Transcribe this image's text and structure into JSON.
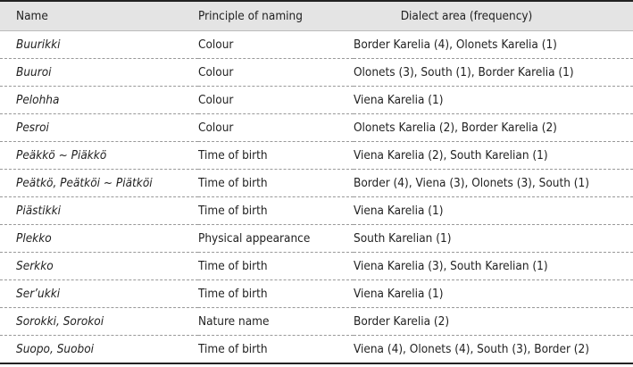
{
  "table": {
    "headers": [
      "Name",
      "Principle of naming",
      "Dialect area (frequency)"
    ],
    "rows": [
      [
        "Buurikki",
        "Colour",
        "Border Karelia (4), Olonets Karelia (1)"
      ],
      [
        "Buuroi",
        "Colour",
        "Olonets (3), South (1), Border Karelia (1)"
      ],
      [
        "Pelohha",
        "Colour",
        "Viena Karelia (1)"
      ],
      [
        "Pesroi",
        "Colour",
        "Olonets Karelia (2), Border Karelia (2)"
      ],
      [
        "Peäkkö ~ Piäkkö",
        "Time of birth",
        "Viena Karelia (2), South Karelian (1)"
      ],
      [
        "Peätkö, Peätköi ~ Piätköi",
        "Time of birth",
        "Border (4), Viena (3), Olonets (3), South (1)"
      ],
      [
        "Piästikki",
        "Time of birth",
        "Viena Karelia (1)"
      ],
      [
        "Plekko",
        "Physical appearance",
        "South Karelian (1)"
      ],
      [
        "Serkko",
        "Time of birth",
        "Viena Karelia (3), South Karelian (1)"
      ],
      [
        "Ser’ukki",
        "Time of birth",
        "Viena Karelia (1)"
      ],
      [
        "Sorokki, Sorokoi",
        "Nature name",
        "Border Karelia (2)"
      ],
      [
        "Suopo, Suoboi",
        "Time of birth",
        "Viena (4), Olonets (4), South (3), Border (2)"
      ]
    ]
  }
}
